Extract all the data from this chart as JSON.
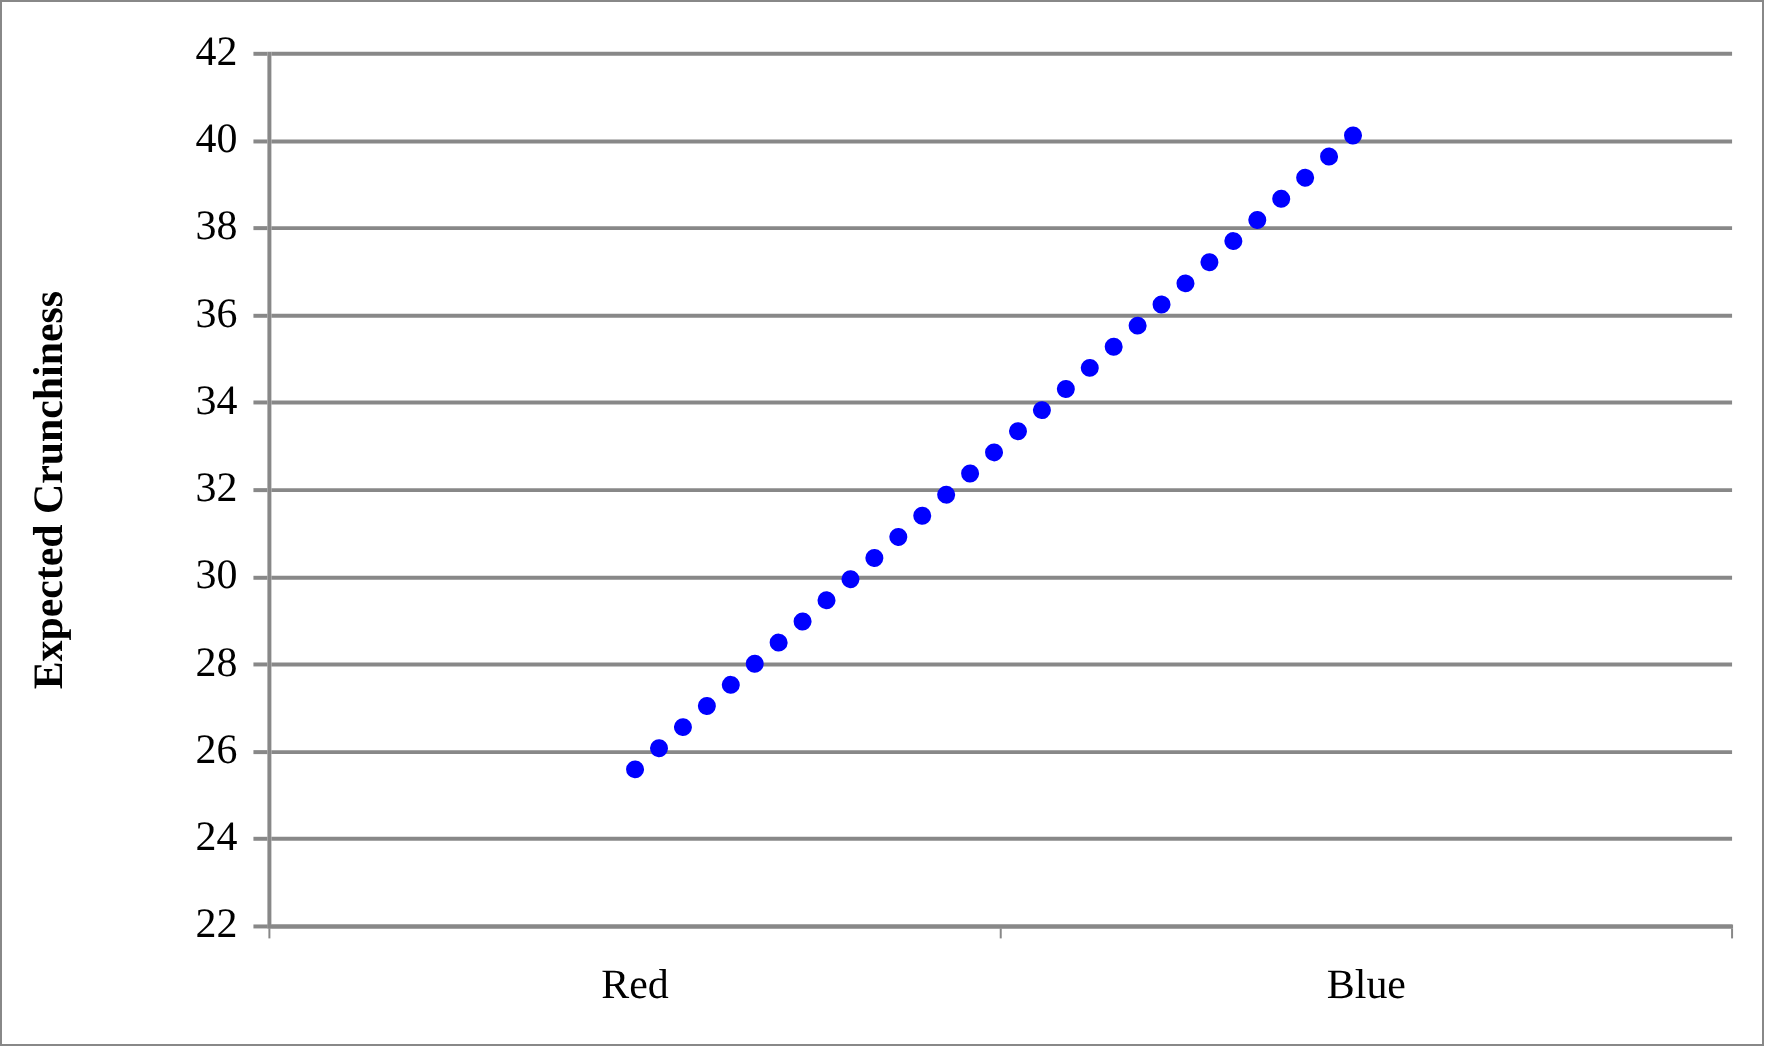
{
  "chart_data": {
    "type": "line",
    "ylabel": "Expected Crunchiness",
    "categories": [
      "Red",
      "Blue"
    ],
    "series": [
      {
        "color": "#0000ff",
        "values": [
          25.6,
          40.4
        ]
      }
    ],
    "ylim": [
      22,
      42
    ],
    "yticks": [
      22,
      24,
      26,
      28,
      30,
      32,
      34,
      36,
      38,
      40,
      42
    ],
    "grid": "y",
    "line_style": "dotted",
    "marker": "none"
  }
}
